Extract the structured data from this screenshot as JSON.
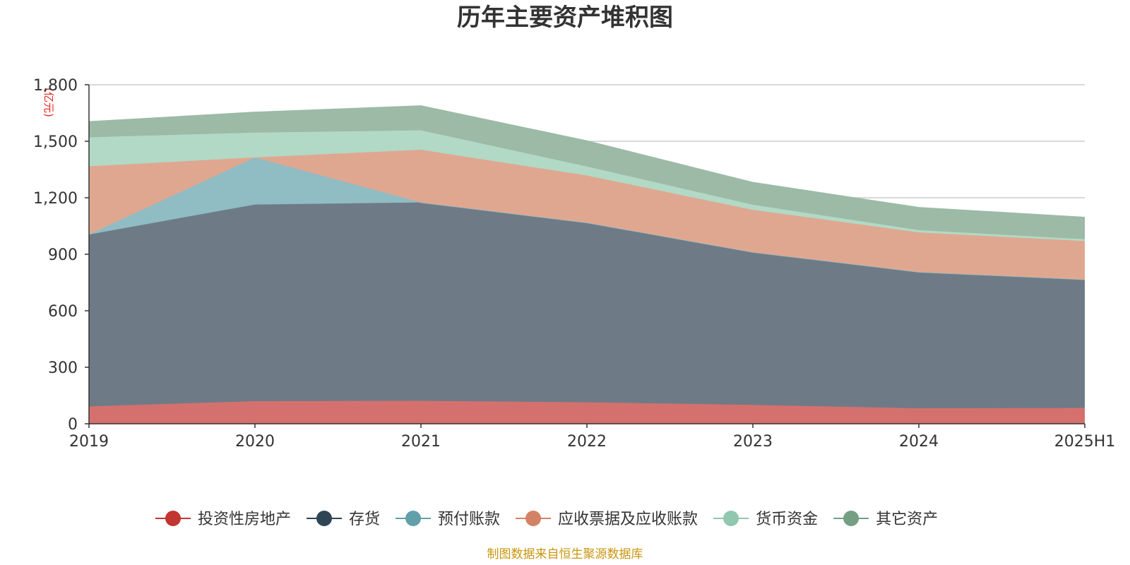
{
  "chart_data": {
    "type": "area",
    "stacked": true,
    "title": "历年主要资产堆积图",
    "unit_label": "(亿元)",
    "categories": [
      "2019",
      "2020",
      "2021",
      "2022",
      "2023",
      "2024",
      "2025H1"
    ],
    "ylim": [
      0,
      1800
    ],
    "yticks": [
      0,
      300,
      600,
      900,
      1200,
      1500,
      1800
    ],
    "ytick_labels": [
      "0",
      "300",
      "600",
      "900",
      "1,200",
      "1,500",
      "1,800"
    ],
    "grid": true,
    "legend_position": "bottom-center",
    "series": [
      {
        "name": "投资性房地产",
        "color": "#c23531",
        "fill": "#d4716e",
        "values": [
          92,
          120,
          122,
          114,
          100,
          82,
          84
        ]
      },
      {
        "name": "存货",
        "color": "#2f4554",
        "fill": "#6e7b86",
        "values": [
          913,
          1044,
          1053,
          954,
          811,
          724,
          682
        ]
      },
      {
        "name": "预付账款",
        "color": "#61a0a8",
        "fill": "#90bcc3",
        "values": [
          0,
          250,
          0,
          0,
          0,
          0,
          0
        ]
      },
      {
        "name": "应收票据及应收账款",
        "color": "#d48265",
        "fill": "#e0a790",
        "values": [
          362,
          0,
          280,
          250,
          225,
          210,
          204
        ]
      },
      {
        "name": "货币资金",
        "color": "#91c7ae",
        "fill": "#b1d9c6",
        "values": [
          154,
          132,
          103,
          48,
          27,
          12,
          10
        ]
      },
      {
        "name": "其它资产",
        "color": "#749f83",
        "fill": "#9cbaa6",
        "values": [
          83,
          108,
          130,
          136,
          118,
          120,
          116
        ]
      }
    ]
  },
  "source_note": "制图数据来自恒生聚源数据库"
}
